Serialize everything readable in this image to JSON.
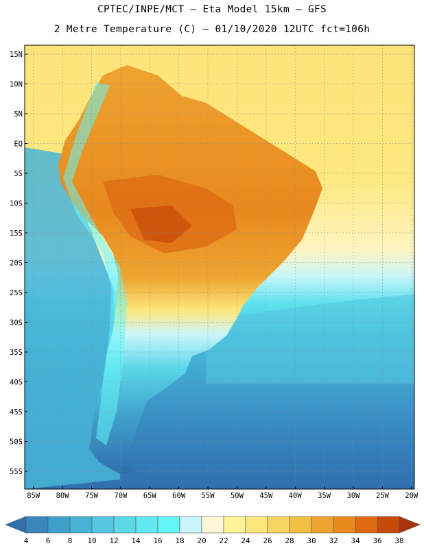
{
  "header": {
    "line1": "CPTEC/INPE/MCT –  Eta Model 15km – GFS",
    "line2": "2 Metre Temperature (C) – 01/10/2020 12UTC fct=106h"
  },
  "map": {
    "lat_labels": [
      "15N",
      "10N",
      "5N",
      "EQ",
      "5S",
      "10S",
      "15S",
      "20S",
      "25S",
      "30S",
      "35S",
      "40S",
      "45S",
      "50S",
      "55S"
    ],
    "lat_values": [
      15,
      10,
      5,
      0,
      -5,
      -10,
      -15,
      -20,
      -25,
      -30,
      -35,
      -40,
      -45,
      -50,
      -55
    ],
    "lon_labels": [
      "85W",
      "80W",
      "75W",
      "70W",
      "65W",
      "60W",
      "55W",
      "50W",
      "45W",
      "40W",
      "35W",
      "30W",
      "25W",
      "20W"
    ],
    "lon_values": [
      -85,
      -80,
      -75,
      -70,
      -65,
      -60,
      -55,
      -50,
      -45,
      -40,
      -35,
      -30,
      -25,
      -20
    ],
    "extent": {
      "lon_min": -86.5,
      "lon_max": -19.5,
      "lat_min": -58,
      "lat_max": 16.5
    }
  },
  "legend": {
    "labels": [
      "4",
      "6",
      "8",
      "10",
      "12",
      "14",
      "16",
      "18",
      "20",
      "22",
      "24",
      "26",
      "28",
      "30",
      "32",
      "34",
      "36",
      "38"
    ],
    "colors": [
      "#2f6fae",
      "#3b86bf",
      "#3fa0cc",
      "#47b4d6",
      "#54c6df",
      "#5cd8e8",
      "#61eaf2",
      "#64f5f7",
      "#c9f5fb",
      "#fff6d8",
      "#fff39a",
      "#fde77a",
      "#f7d560",
      "#f2bf45",
      "#eea430",
      "#e8891d",
      "#dd6a12",
      "#c64a08",
      "#a8320a"
    ]
  }
}
